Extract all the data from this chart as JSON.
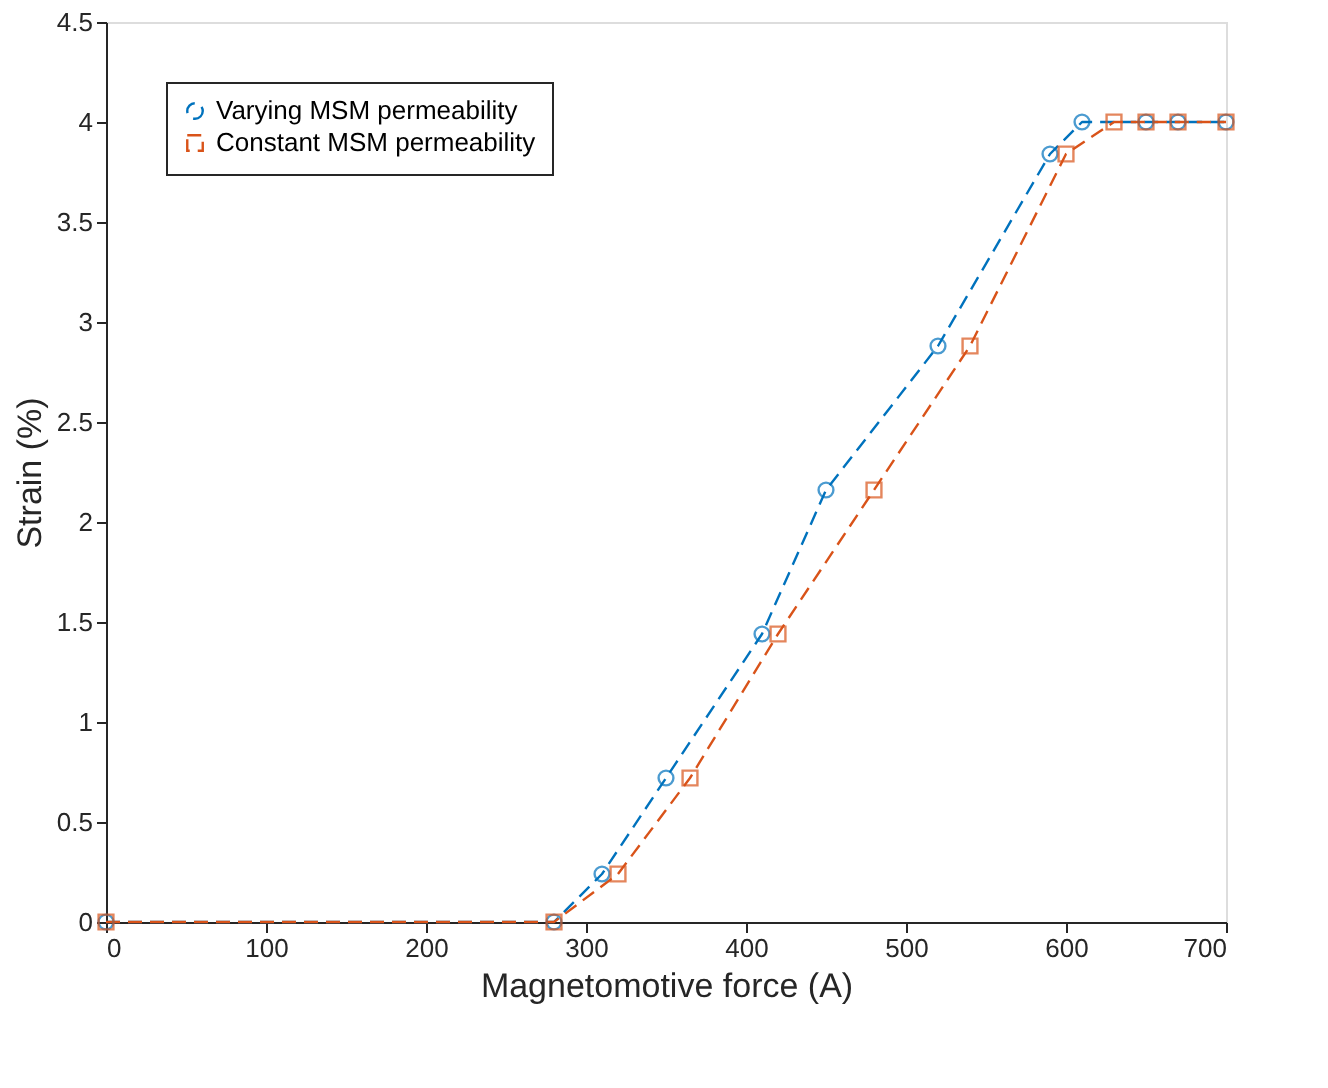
{
  "chart_data": {
    "type": "line",
    "xlabel": "Magnetomotive force (A)",
    "ylabel": "Strain (%)",
    "xlim": [
      0,
      700
    ],
    "xticks": [
      0,
      100,
      200,
      300,
      400,
      500,
      600,
      700
    ],
    "ylim": [
      0,
      4.5
    ],
    "yticks": [
      0,
      0.5,
      1,
      1.5,
      2,
      2.5,
      3,
      3.5,
      4,
      4.5
    ],
    "grid": false,
    "legend": "top left",
    "line_style": "dashed",
    "series": [
      {
        "name": "Varying MSM permeability",
        "color": "#0072bd",
        "marker": "circle",
        "x": [
          0,
          280,
          310,
          350,
          410,
          450,
          520,
          590,
          610,
          650,
          670,
          700
        ],
        "values": [
          0,
          0,
          0.24,
          0.72,
          1.44,
          2.16,
          2.88,
          3.84,
          4,
          4,
          4,
          4
        ]
      },
      {
        "name": "Constant MSM permeability",
        "color": "#d95319",
        "marker": "square",
        "x": [
          0,
          280,
          320,
          365,
          420,
          480,
          540,
          600,
          630,
          650,
          670,
          700
        ],
        "values": [
          0,
          0,
          0.24,
          0.72,
          1.44,
          2.16,
          2.88,
          3.84,
          4,
          4,
          4,
          4
        ]
      }
    ]
  }
}
